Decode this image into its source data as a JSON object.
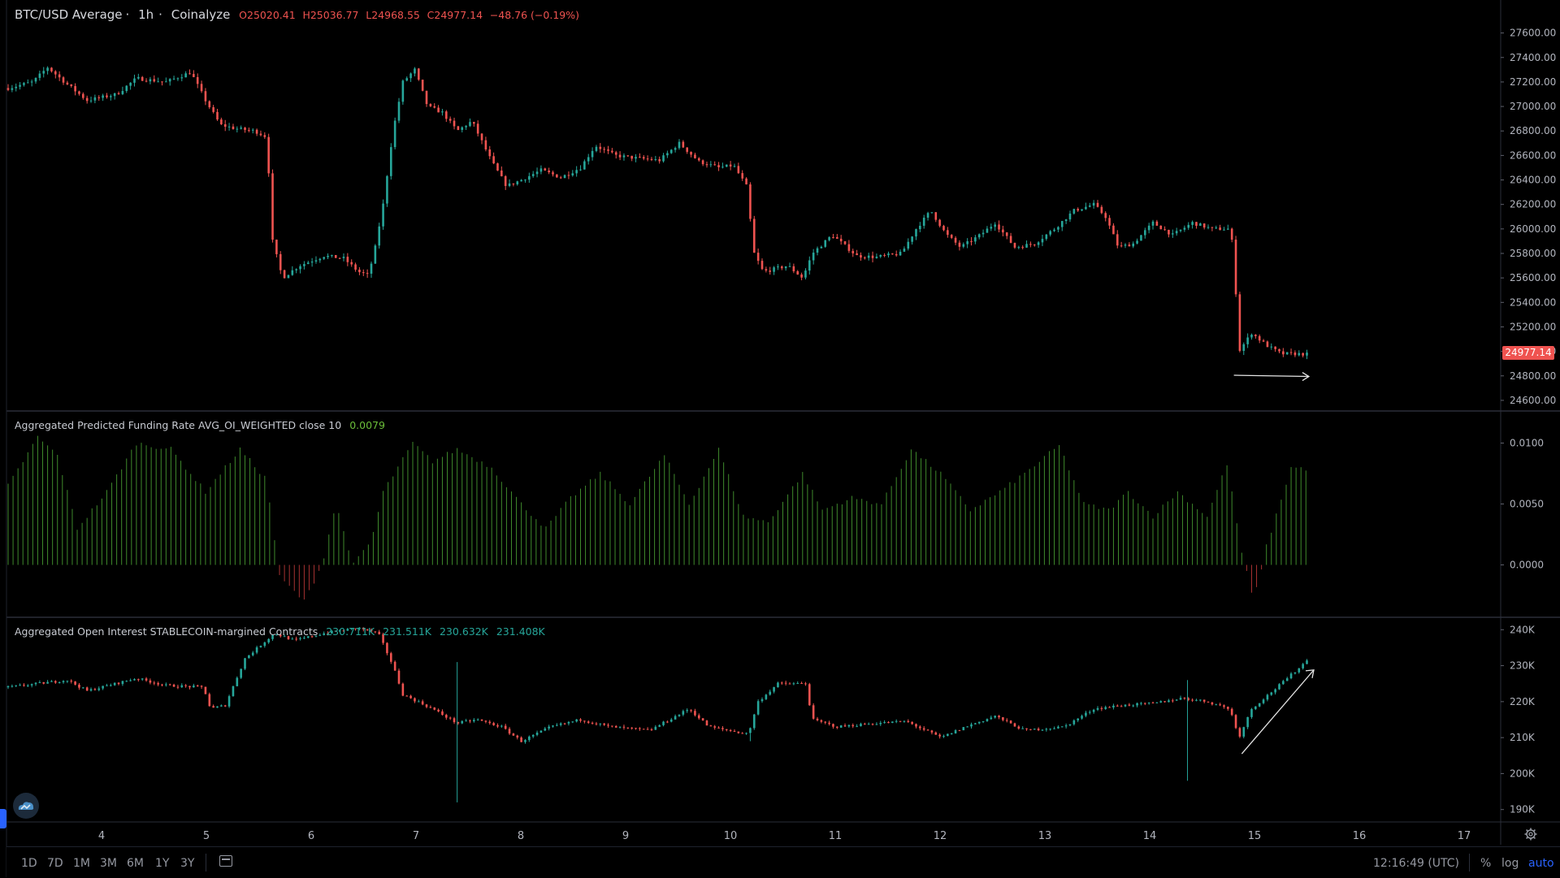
{
  "header": {
    "symbol": "BTC/USD Average",
    "interval": "1h",
    "source": "Coinalyze",
    "open": "O25020.41",
    "high": "H25036.77",
    "low": "L24968.55",
    "close": "C24977.14",
    "change": "−48.76 (−0.19%)"
  },
  "funding_legend": {
    "title": "Aggregated Predicted Funding Rate AVG_OI_WEIGHTED close 10",
    "value": "0.0079"
  },
  "oi_legend": {
    "title": "Aggregated Open Interest STABLECOIN-margined Contracts",
    "o": "230.711K",
    "h": "231.511K",
    "l": "230.632K",
    "c": "231.408K"
  },
  "price_tag": "24977.14",
  "bottom": {
    "timeframes": [
      "1D",
      "7D",
      "1M",
      "3M",
      "6M",
      "1Y",
      "3Y"
    ],
    "clock": "12:16:49 (UTC)",
    "percent": "%",
    "log": "log",
    "auto": "auto"
  },
  "colors": {
    "up": "#26a69a",
    "down": "#ef5350",
    "funding_pos": "#3f8a2c",
    "funding_neg": "#a83232",
    "grid": "#1e222d",
    "background": "#000000"
  },
  "axes": {
    "price_ticks": [
      "27600.00",
      "27400.00",
      "27200.00",
      "27000.00",
      "26800.00",
      "26600.00",
      "26400.00",
      "26200.00",
      "26000.00",
      "25800.00",
      "25600.00",
      "25400.00",
      "25200.00",
      "25000.00",
      "24800.00",
      "24600.00"
    ],
    "funding_ticks": [
      "0.0100",
      "0.0050",
      "0.0000"
    ],
    "oi_ticks": [
      "240K",
      "230K",
      "220K",
      "210K",
      "200K",
      "190K"
    ],
    "date_ticks": [
      "4",
      "5",
      "6",
      "7",
      "8",
      "9",
      "10",
      "11",
      "12",
      "13",
      "14",
      "15",
      "16",
      "17"
    ]
  },
  "chart_data": [
    {
      "type": "candlestick",
      "name": "BTC/USD Average",
      "interval": "1h",
      "ylim": [
        24500,
        27750
      ],
      "x_start_day": 3.0,
      "x_end_day": 15.5,
      "anchors": [
        [
          0,
          27150
        ],
        [
          25,
          27200
        ],
        [
          40,
          27320
        ],
        [
          60,
          27180
        ],
        [
          80,
          27050
        ],
        [
          110,
          27100
        ],
        [
          130,
          27230
        ],
        [
          160,
          27200
        ],
        [
          185,
          27280
        ],
        [
          200,
          27050
        ],
        [
          215,
          26850
        ],
        [
          230,
          26820
        ],
        [
          250,
          26800
        ],
        [
          262,
          26750
        ],
        [
          268,
          25900
        ],
        [
          278,
          25600
        ],
        [
          295,
          25700
        ],
        [
          320,
          25780
        ],
        [
          340,
          25760
        ],
        [
          355,
          25650
        ],
        [
          365,
          25620
        ],
        [
          372,
          25850
        ],
        [
          380,
          26200
        ],
        [
          390,
          26800
        ],
        [
          400,
          27200
        ],
        [
          412,
          27300
        ],
        [
          425,
          27000
        ],
        [
          440,
          26950
        ],
        [
          455,
          26800
        ],
        [
          470,
          26880
        ],
        [
          490,
          26550
        ],
        [
          505,
          26350
        ],
        [
          520,
          26400
        ],
        [
          540,
          26480
        ],
        [
          560,
          26420
        ],
        [
          580,
          26500
        ],
        [
          595,
          26680
        ],
        [
          615,
          26600
        ],
        [
          635,
          26580
        ],
        [
          660,
          26560
        ],
        [
          680,
          26700
        ],
        [
          700,
          26550
        ],
        [
          720,
          26500
        ],
        [
          735,
          26520
        ],
        [
          748,
          26350
        ],
        [
          756,
          25800
        ],
        [
          765,
          25650
        ],
        [
          790,
          25700
        ],
        [
          805,
          25600
        ],
        [
          815,
          25800
        ],
        [
          835,
          25950
        ],
        [
          860,
          25780
        ],
        [
          880,
          25770
        ],
        [
          905,
          25800
        ],
        [
          920,
          26000
        ],
        [
          935,
          26150
        ],
        [
          950,
          25960
        ],
        [
          965,
          25850
        ],
        [
          985,
          25950
        ],
        [
          1000,
          26050
        ],
        [
          1020,
          25850
        ],
        [
          1040,
          25880
        ],
        [
          1060,
          26000
        ],
        [
          1080,
          26150
        ],
        [
          1100,
          26200
        ],
        [
          1112,
          26100
        ],
        [
          1125,
          25850
        ],
        [
          1140,
          25880
        ],
        [
          1160,
          26050
        ],
        [
          1180,
          25950
        ],
        [
          1200,
          26050
        ],
        [
          1220,
          26000
        ],
        [
          1238,
          26000
        ],
        [
          1242,
          25800
        ],
        [
          1247,
          25000
        ],
        [
          1260,
          25150
        ],
        [
          1275,
          25050
        ],
        [
          1290,
          24980
        ],
        [
          1305,
          24980
        ],
        [
          1316,
          24977
        ]
      ],
      "last_close": 24977.14
    },
    {
      "type": "bar",
      "name": "Aggregated Predicted Funding Rate AVG_OI_WEIGHTED close 10",
      "ylim": [
        -0.0035,
        0.0105
      ],
      "anchors": [
        [
          0,
          0.0065
        ],
        [
          30,
          0.0105
        ],
        [
          50,
          0.009
        ],
        [
          70,
          0.003
        ],
        [
          100,
          0.006
        ],
        [
          130,
          0.01
        ],
        [
          165,
          0.0095
        ],
        [
          200,
          0.006
        ],
        [
          235,
          0.0095
        ],
        [
          262,
          0.007
        ],
        [
          275,
          -0.001
        ],
        [
          300,
          -0.003
        ],
        [
          318,
          0.0
        ],
        [
          332,
          0.005
        ],
        [
          350,
          0.0
        ],
        [
          368,
          0.002
        ],
        [
          380,
          0.006
        ],
        [
          410,
          0.01
        ],
        [
          430,
          0.0085
        ],
        [
          455,
          0.0095
        ],
        [
          490,
          0.008
        ],
        [
          520,
          0.005
        ],
        [
          545,
          0.003
        ],
        [
          570,
          0.0055
        ],
        [
          600,
          0.0075
        ],
        [
          630,
          0.005
        ],
        [
          665,
          0.009
        ],
        [
          690,
          0.005
        ],
        [
          720,
          0.0095
        ],
        [
          745,
          0.004
        ],
        [
          770,
          0.0035
        ],
        [
          805,
          0.0075
        ],
        [
          825,
          0.0045
        ],
        [
          855,
          0.0055
        ],
        [
          885,
          0.005
        ],
        [
          915,
          0.0095
        ],
        [
          945,
          0.0075
        ],
        [
          975,
          0.0045
        ],
        [
          1005,
          0.006
        ],
        [
          1030,
          0.0075
        ],
        [
          1065,
          0.0098
        ],
        [
          1090,
          0.005
        ],
        [
          1115,
          0.0045
        ],
        [
          1135,
          0.006
        ],
        [
          1160,
          0.004
        ],
        [
          1185,
          0.006
        ],
        [
          1215,
          0.004
        ],
        [
          1235,
          0.0083
        ],
        [
          1250,
          0.001
        ],
        [
          1262,
          -0.003
        ],
        [
          1275,
          0.0015
        ],
        [
          1300,
          0.008
        ],
        [
          1316,
          0.0079
        ]
      ],
      "last_value": 0.0079
    },
    {
      "type": "candlestick",
      "name": "Aggregated Open Interest STABLECOIN-margined Contracts",
      "ylim": [
        187000,
        243000
      ],
      "anchors": [
        [
          0,
          224000
        ],
        [
          60,
          226000
        ],
        [
          80,
          223000
        ],
        [
          130,
          226500
        ],
        [
          160,
          224500
        ],
        [
          198,
          224000
        ],
        [
          205,
          218000
        ],
        [
          220,
          219000
        ],
        [
          240,
          232000
        ],
        [
          270,
          239000
        ],
        [
          290,
          237000
        ],
        [
          320,
          239000
        ],
        [
          355,
          240500
        ],
        [
          375,
          239000
        ],
        [
          390,
          230000
        ],
        [
          400,
          222000
        ],
        [
          430,
          218000
        ],
        [
          455,
          214000
        ],
        [
          475,
          215000
        ],
        [
          500,
          213000
        ],
        [
          520,
          209000
        ],
        [
          550,
          213000
        ],
        [
          580,
          215000
        ],
        [
          610,
          213000
        ],
        [
          650,
          212000
        ],
        [
          690,
          218000
        ],
        [
          710,
          213000
        ],
        [
          750,
          211000
        ],
        [
          760,
          220000
        ],
        [
          780,
          225000
        ],
        [
          808,
          225000
        ],
        [
          815,
          215000
        ],
        [
          840,
          213000
        ],
        [
          880,
          214000
        ],
        [
          910,
          214500
        ],
        [
          945,
          210000
        ],
        [
          970,
          213000
        ],
        [
          1000,
          216000
        ],
        [
          1030,
          212000
        ],
        [
          1070,
          213000
        ],
        [
          1100,
          218000
        ],
        [
          1130,
          219000
        ],
        [
          1160,
          219500
        ],
        [
          1190,
          221000
        ],
        [
          1215,
          220000
        ],
        [
          1238,
          218000
        ],
        [
          1247,
          210000
        ],
        [
          1260,
          218000
        ],
        [
          1290,
          225000
        ],
        [
          1316,
          231408
        ]
      ],
      "spikes": [
        [
          455,
          192000,
          231000
        ],
        [
          1195,
          198000,
          226000
        ],
        [
          752,
          209000,
          211000
        ]
      ]
    }
  ]
}
